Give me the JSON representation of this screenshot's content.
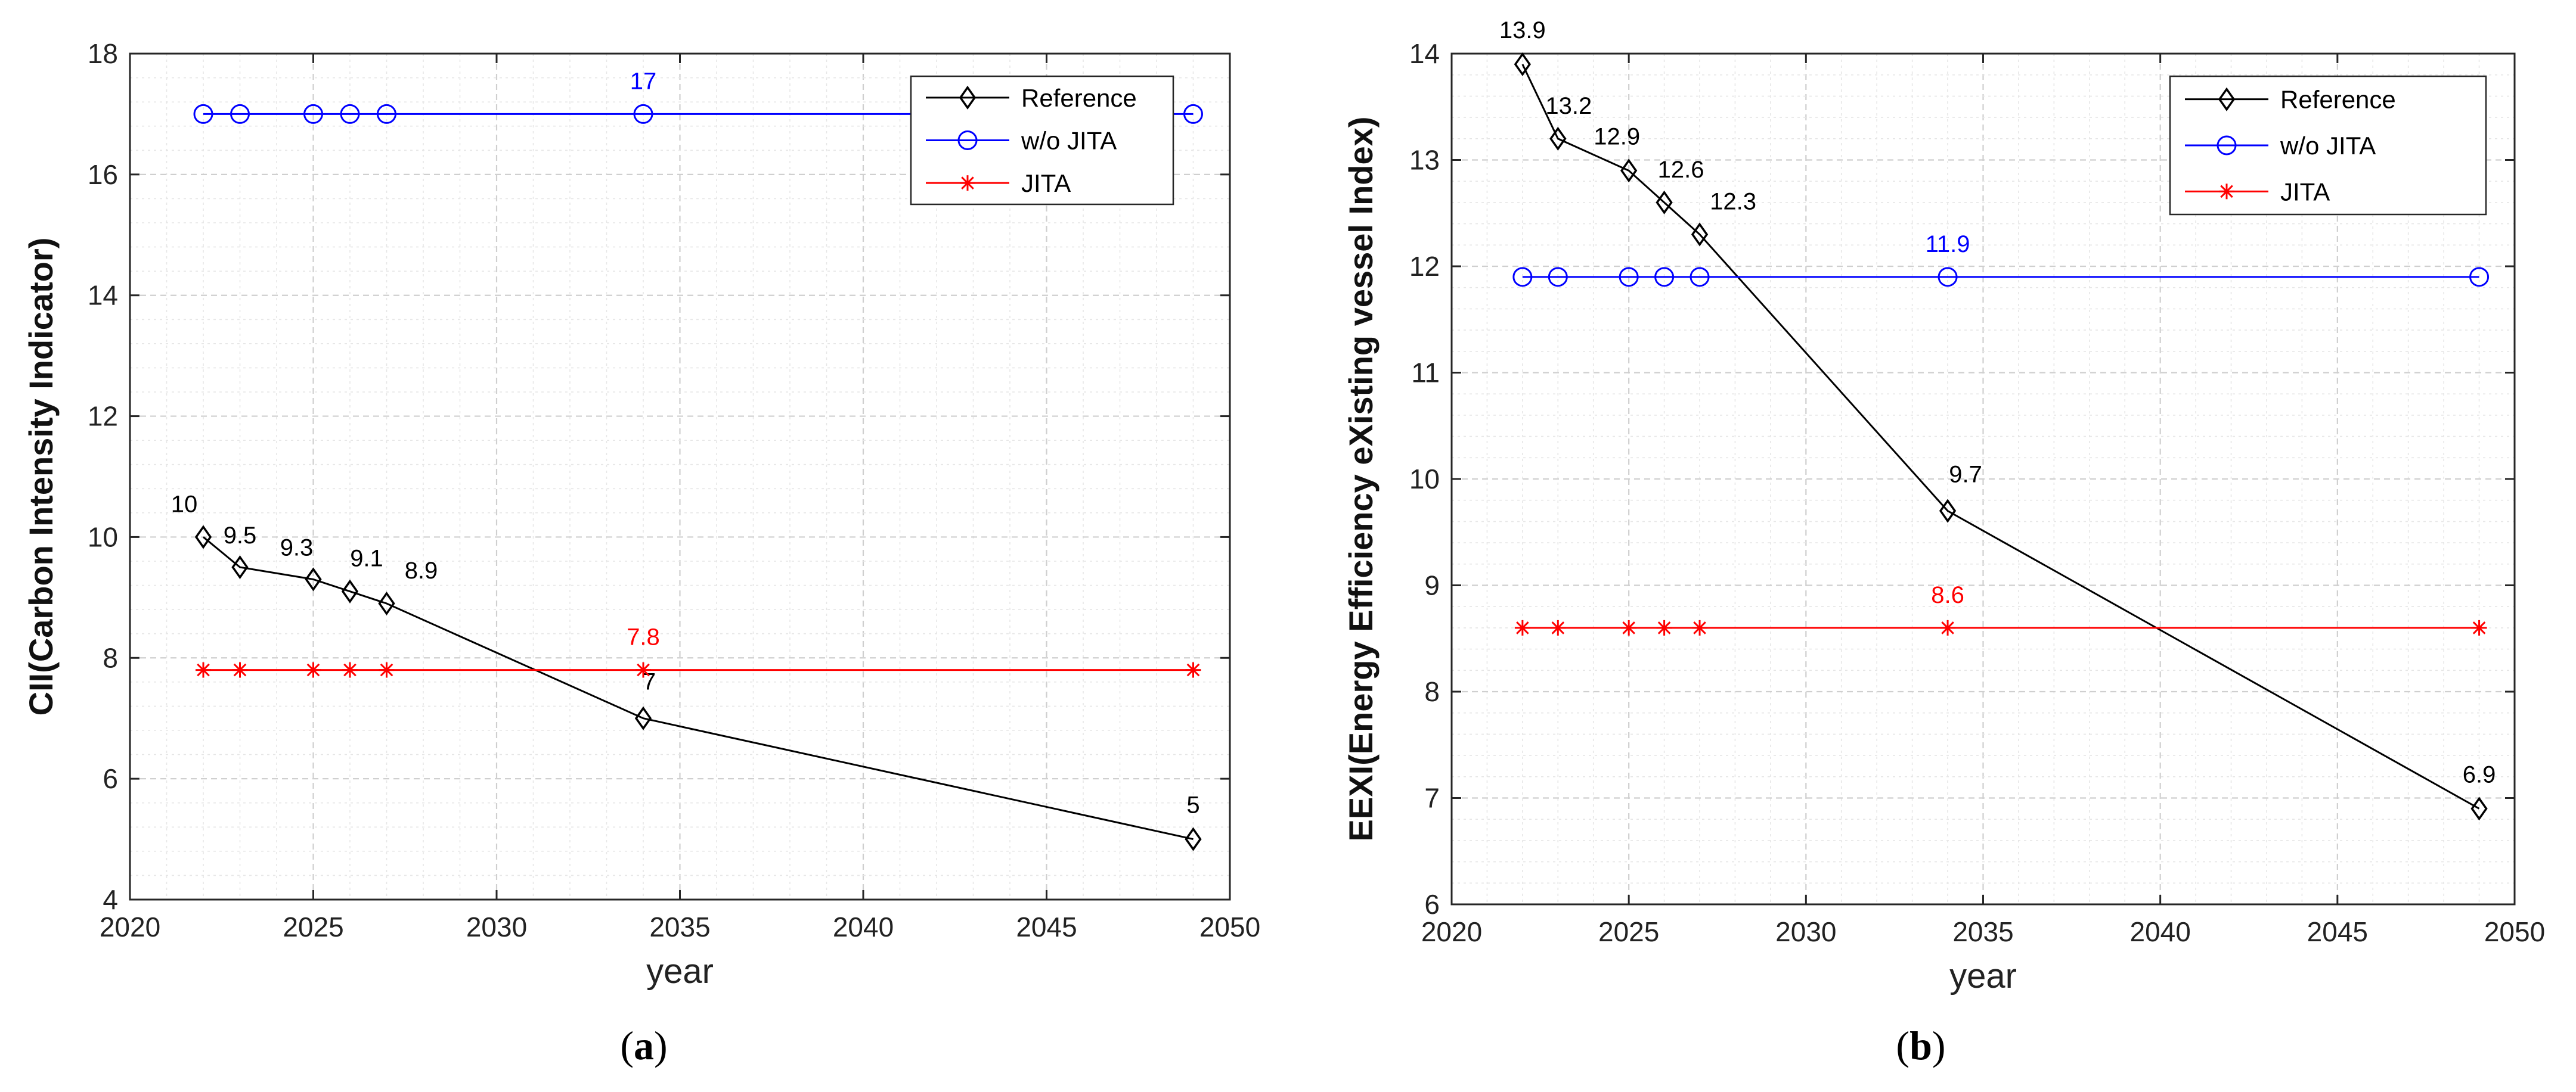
{
  "colors": {
    "reference": "#000000",
    "wo_jita": "#0000ff",
    "jita": "#ff0000",
    "grid_major": "#cfcfcf",
    "grid_minor": "#e6e6e6",
    "axes": "#262626"
  },
  "chart_data": [
    {
      "type": "line",
      "caption": "(a)",
      "caption_letter": "a",
      "xlabel": "year",
      "ylabel": "CII(Carbon Intensity Indicator)",
      "xlim": [
        2020,
        2050
      ],
      "ylim": [
        4,
        18
      ],
      "xticks": [
        2020,
        2025,
        2030,
        2035,
        2040,
        2045,
        2050
      ],
      "yticks": [
        4,
        6,
        8,
        10,
        12,
        14,
        16,
        18
      ],
      "grid": true,
      "legend_position": "top-right",
      "series": [
        {
          "name": "Reference",
          "marker": "diamond",
          "x": [
            2022,
            2023,
            2025,
            2026,
            2027,
            2034,
            2049
          ],
          "y": [
            10,
            9.5,
            9.3,
            9.1,
            8.9,
            7,
            5
          ],
          "labels": [
            "10",
            "9.5",
            "9.3",
            "9.1",
            "8.9",
            "7",
            "5"
          ]
        },
        {
          "name": "w/o JITA",
          "marker": "circle",
          "x": [
            2022,
            2023,
            2025,
            2026,
            2027,
            2034,
            2049
          ],
          "y": [
            17,
            17,
            17,
            17,
            17,
            17,
            17
          ],
          "annotation": {
            "text": "17",
            "x": 2034,
            "y": 17
          }
        },
        {
          "name": "JITA",
          "marker": "asterisk",
          "x": [
            2022,
            2023,
            2025,
            2026,
            2027,
            2034,
            2049
          ],
          "y": [
            7.8,
            7.8,
            7.8,
            7.8,
            7.8,
            7.8,
            7.8
          ],
          "annotation": {
            "text": "7.8",
            "x": 2034,
            "y": 7.8
          }
        }
      ]
    },
    {
      "type": "line",
      "caption": "(b)",
      "caption_letter": "b",
      "xlabel": "year",
      "ylabel": "EEXI(Energy Efficiency eXisting vessel Index)",
      "xlim": [
        2020,
        2050
      ],
      "ylim": [
        6,
        14
      ],
      "xticks": [
        2020,
        2025,
        2030,
        2035,
        2040,
        2045,
        2050
      ],
      "yticks": [
        6,
        7,
        8,
        9,
        10,
        11,
        12,
        13,
        14
      ],
      "grid": true,
      "legend_position": "top-right",
      "series": [
        {
          "name": "Reference",
          "marker": "diamond",
          "x": [
            2022,
            2023,
            2025,
            2026,
            2027,
            2034,
            2049
          ],
          "y": [
            13.9,
            13.2,
            12.9,
            12.6,
            12.3,
            9.7,
            6.9
          ],
          "labels": [
            "13.9",
            "13.2",
            "12.9",
            "12.6",
            "12.3",
            "9.7",
            "6.9"
          ]
        },
        {
          "name": "w/o JITA",
          "marker": "circle",
          "x": [
            2022,
            2023,
            2025,
            2026,
            2027,
            2034,
            2049
          ],
          "y": [
            11.9,
            11.9,
            11.9,
            11.9,
            11.9,
            11.9,
            11.9
          ],
          "annotation": {
            "text": "11.9",
            "x": 2034,
            "y": 11.9
          }
        },
        {
          "name": "JITA",
          "marker": "asterisk",
          "x": [
            2022,
            2023,
            2025,
            2026,
            2027,
            2034,
            2049
          ],
          "y": [
            8.6,
            8.6,
            8.6,
            8.6,
            8.6,
            8.6,
            8.6
          ],
          "annotation": {
            "text": "8.6",
            "x": 2034,
            "y": 8.6
          }
        }
      ]
    }
  ]
}
